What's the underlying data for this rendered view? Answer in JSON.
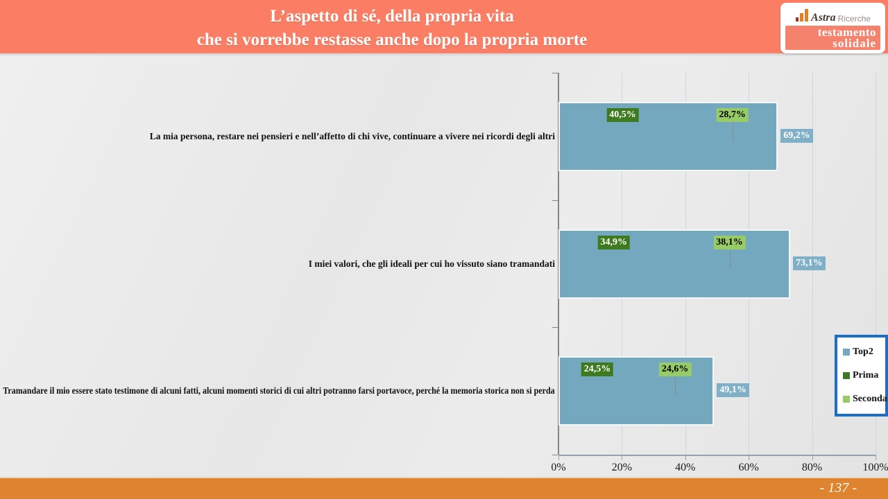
{
  "header": {
    "title_line1": "L’aspetto di sé, della propria vita",
    "title_line2": "che si vorrebbe restasse anche dopo la propria morte",
    "bg_color": "#FB7E64"
  },
  "logo": {
    "brand_script": "Astra",
    "brand_rest": "Ricerche",
    "box_line1": "testamento",
    "box_line2": "solidale",
    "box_color": "#F5826D",
    "bars_icon_colors": [
      "#A93226",
      "#E67E22",
      "#E67E22"
    ]
  },
  "footer": {
    "page_number": "- 137 -",
    "bg_color": "#DE8430"
  },
  "chart_data": {
    "type": "bar",
    "orientation": "horizontal",
    "title": "",
    "categories": [
      "La mia persona, restare nei pensieri e nell’affetto di chi vive, continuare a vivere nei ricordi degli altri",
      "I miei valori, che gli ideali per cui ho vissuto siano tramandati",
      "Tramandare il mio essere stato testimone di alcuni fatti, alcuni momenti storici di cui altri potranno farsi portavoce, perché la memoria storica non si perda"
    ],
    "series": [
      {
        "name": "Top2",
        "color": "#74A8BE",
        "label_bg": "#7FB0C8",
        "label_color": "#FFFFFF",
        "values": [
          69.2,
          73.1,
          49.1
        ],
        "labels": [
          "69,2%",
          "73,1%",
          "49,1%"
        ]
      },
      {
        "name": "Prima",
        "color": "#3E7A20",
        "label_bg": "#3E7A20",
        "label_color": "#FFFFFF",
        "values": [
          40.5,
          34.9,
          24.5
        ],
        "labels": [
          "40,5%",
          "34,9%",
          "24,5%"
        ]
      },
      {
        "name": "Seconda",
        "color": "#97CB68",
        "label_bg": "#97CB68",
        "label_color": "#000000",
        "values": [
          28.7,
          38.1,
          24.6
        ],
        "labels": [
          "28,7%",
          "38,1%",
          "24,6%"
        ]
      }
    ],
    "x_ticks": [
      "0%",
      "20%",
      "40%",
      "60%",
      "80%",
      "100%"
    ],
    "x_tick_values": [
      0,
      20,
      40,
      60,
      80,
      100
    ],
    "xlim": [
      0,
      100
    ],
    "gridlines": true,
    "legend": {
      "position": "right",
      "entries": [
        "Top2",
        "Prima",
        "Seconda"
      ],
      "border_color": "#1A6FC7"
    }
  }
}
